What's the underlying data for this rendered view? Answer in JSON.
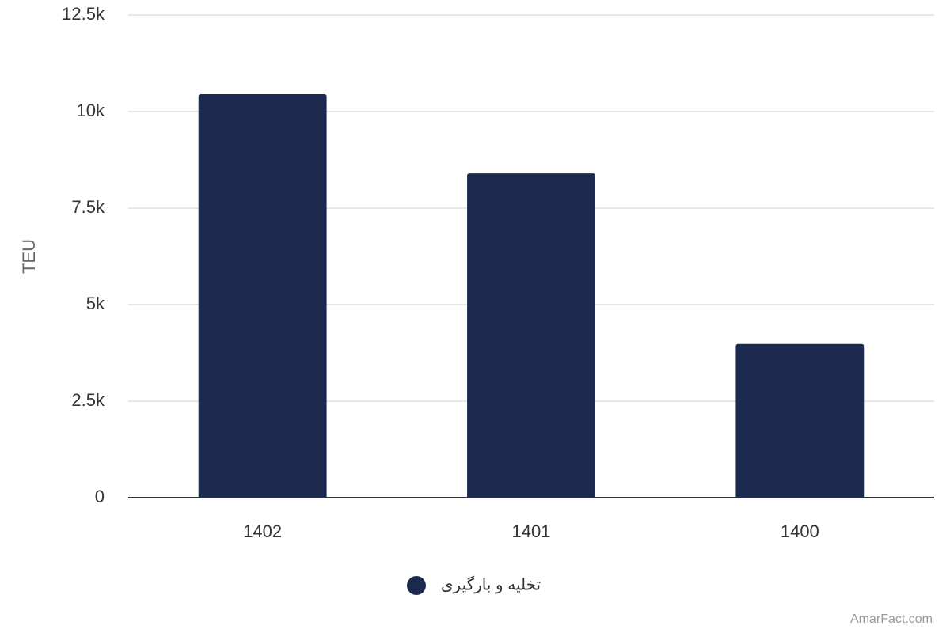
{
  "chart_data": {
    "type": "bar",
    "categories": [
      "1402",
      "1401",
      "1400"
    ],
    "series": [
      {
        "name": "تخلیه و بارگیری",
        "color": "#1b2a4e",
        "values": [
          10450,
          8400,
          3980
        ]
      }
    ],
    "y_label": "TEU",
    "ylim": [
      0,
      12500
    ],
    "yticks": [
      0,
      {
        "value": 2500,
        "label": "2.5k"
      },
      {
        "value": 5000,
        "label": "5k"
      },
      {
        "value": 7500,
        "label": "7.5k"
      },
      {
        "value": 10000,
        "label": "10k"
      },
      {
        "value": 12500,
        "label": "12.5k"
      }
    ],
    "grid": true,
    "credit": "AmarFact.com"
  }
}
